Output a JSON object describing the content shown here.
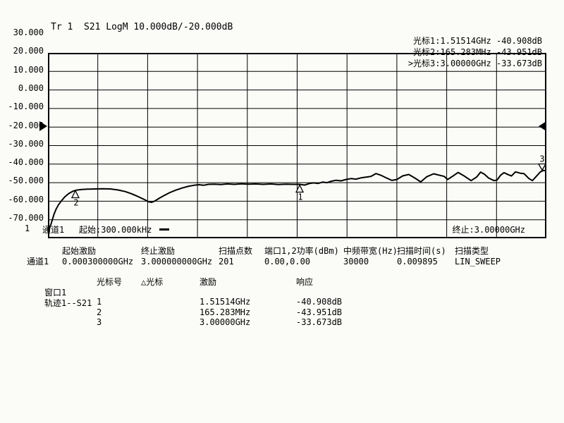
{
  "window": {
    "background": "#fbfbf8",
    "foreground": "#000000"
  },
  "trace_header": {
    "text": "Tr 1  S21 LogM 10.000dB/-20.000dB"
  },
  "plot": {
    "y_tick_labels": [
      "30.000",
      "20.000",
      "10.000",
      "0.000",
      "-10.000",
      "-20.000",
      "-30.000",
      "-40.000",
      "-50.000",
      "-60.000",
      "-70.000"
    ]
  },
  "marker_readouts": [
    {
      "active": false,
      "name": "光标1",
      "stimulus": "1.51514GHz",
      "response": "-40.908dB"
    },
    {
      "active": false,
      "name": "光标2",
      "stimulus": "165.283MHz",
      "response": "-43.951dB"
    },
    {
      "active": true,
      "name": "光标3",
      "stimulus": "3.00000GHz",
      "response": "-33.673dB"
    }
  ],
  "status_bar": {
    "trace_num": "1",
    "channel": "通道1",
    "start": "起始:300.000kHz",
    "trace_style_icon": "horizontal-line",
    "stop": "终止:3.00000GHz"
  },
  "sweep_table": {
    "row_label": "通道1",
    "columns": [
      {
        "header": "起始激励",
        "value": "0.000300000GHz"
      },
      {
        "header": "终止激励",
        "value": "3.000000000GHz"
      },
      {
        "header": "扫描点数",
        "value": "201"
      },
      {
        "header": "端口1,2功率(dBm)",
        "value": "0.00,0.00"
      },
      {
        "header": "中频带宽(Hz)",
        "value": "30000"
      },
      {
        "header": "扫描时间(s)",
        "value": "0.009895"
      },
      {
        "header": "扫描类型",
        "value": "LIN_SWEEP"
      }
    ]
  },
  "marker_table": {
    "window_label": "窗口1",
    "trace_label": "轨迹1--S21",
    "headers": [
      "光标号",
      "△光标",
      "激励",
      "响应"
    ],
    "rows": [
      {
        "num": "1",
        "delta": "",
        "stimulus": "1.51514GHz",
        "response": "-40.908dB"
      },
      {
        "num": "2",
        "delta": "",
        "stimulus": "165.283MHz",
        "response": "-43.951dB"
      },
      {
        "num": "3",
        "delta": "",
        "stimulus": "3.00000GHz",
        "response": "-33.673dB"
      }
    ]
  },
  "chart_data": {
    "type": "line",
    "title": "Tr 1 S21 LogM 10.000dB/-20.000dB",
    "x_axis": {
      "start_label": "300.000kHz",
      "stop_label": "3.00000GHz",
      "start_hz": 300000,
      "stop_hz": 3000000000,
      "scale": "linear",
      "divisions": 10
    },
    "y_axis": {
      "min": -70,
      "max": 30,
      "tick_step": 10,
      "unit": "dB",
      "reference_level": -20,
      "scale_per_div": "10.000dB"
    },
    "grid": {
      "x_divisions": 10,
      "y_divisions": 10,
      "color": "#000000"
    },
    "legend_position": "top-right-overlay",
    "markers": [
      {
        "num": "1",
        "x_frac": 0.505,
        "db": -40.908,
        "glyph": "triangle-up",
        "label_pos": "below"
      },
      {
        "num": "2",
        "x_frac": 0.0551,
        "db": -43.951,
        "glyph": "triangle-up",
        "label_pos": "below"
      },
      {
        "num": "3",
        "x_frac": 0.998,
        "db": -33.673,
        "glyph": "triangle-down",
        "label_pos": "above"
      }
    ],
    "series": [
      {
        "name": "Tr1 S21",
        "points": [
          [
            0.0,
            -64.3
          ],
          [
            0.003,
            -64.8
          ],
          [
            0.006,
            -62.5
          ],
          [
            0.009,
            -59.8
          ],
          [
            0.012,
            -57.2
          ],
          [
            0.016,
            -54.5
          ],
          [
            0.021,
            -52.0
          ],
          [
            0.027,
            -49.8
          ],
          [
            0.034,
            -47.6
          ],
          [
            0.042,
            -45.8
          ],
          [
            0.05,
            -44.6
          ],
          [
            0.058,
            -44.0
          ],
          [
            0.068,
            -43.7
          ],
          [
            0.08,
            -43.5
          ],
          [
            0.095,
            -43.4
          ],
          [
            0.11,
            -43.3
          ],
          [
            0.125,
            -43.4
          ],
          [
            0.14,
            -43.9
          ],
          [
            0.155,
            -44.8
          ],
          [
            0.168,
            -46.0
          ],
          [
            0.18,
            -47.4
          ],
          [
            0.192,
            -48.9
          ],
          [
            0.202,
            -50.3
          ],
          [
            0.208,
            -50.6
          ],
          [
            0.215,
            -49.8
          ],
          [
            0.224,
            -48.3
          ],
          [
            0.234,
            -46.8
          ],
          [
            0.245,
            -45.3
          ],
          [
            0.257,
            -44.0
          ],
          [
            0.269,
            -42.9
          ],
          [
            0.281,
            -42.0
          ],
          [
            0.293,
            -41.4
          ],
          [
            0.303,
            -41.1
          ],
          [
            0.312,
            -41.4
          ],
          [
            0.322,
            -40.9
          ],
          [
            0.334,
            -40.8
          ],
          [
            0.347,
            -41.0
          ],
          [
            0.36,
            -40.7
          ],
          [
            0.374,
            -40.9
          ],
          [
            0.388,
            -40.6
          ],
          [
            0.402,
            -40.8
          ],
          [
            0.417,
            -40.7
          ],
          [
            0.432,
            -40.9
          ],
          [
            0.447,
            -40.7
          ],
          [
            0.462,
            -41.0
          ],
          [
            0.477,
            -40.8
          ],
          [
            0.492,
            -40.9
          ],
          [
            0.505,
            -40.9
          ],
          [
            0.515,
            -41.3
          ],
          [
            0.524,
            -40.5
          ],
          [
            0.533,
            -40.1
          ],
          [
            0.542,
            -40.4
          ],
          [
            0.551,
            -39.7
          ],
          [
            0.56,
            -40.0
          ],
          [
            0.569,
            -39.2
          ],
          [
            0.578,
            -38.7
          ],
          [
            0.588,
            -39.0
          ],
          [
            0.598,
            -38.3
          ],
          [
            0.608,
            -37.8
          ],
          [
            0.618,
            -38.1
          ],
          [
            0.628,
            -37.4
          ],
          [
            0.638,
            -37.0
          ],
          [
            0.648,
            -36.6
          ],
          [
            0.658,
            -35.1
          ],
          [
            0.668,
            -36.0
          ],
          [
            0.678,
            -37.3
          ],
          [
            0.69,
            -38.8
          ],
          [
            0.7,
            -38.3
          ],
          [
            0.712,
            -36.3
          ],
          [
            0.724,
            -35.6
          ],
          [
            0.736,
            -37.5
          ],
          [
            0.748,
            -39.6
          ],
          [
            0.76,
            -36.8
          ],
          [
            0.774,
            -35.2
          ],
          [
            0.784,
            -35.9
          ],
          [
            0.795,
            -36.6
          ],
          [
            0.802,
            -38.3
          ],
          [
            0.812,
            -36.5
          ],
          [
            0.823,
            -34.5
          ],
          [
            0.834,
            -36.2
          ],
          [
            0.849,
            -38.9
          ],
          [
            0.86,
            -37.0
          ],
          [
            0.868,
            -34.3
          ],
          [
            0.876,
            -35.5
          ],
          [
            0.884,
            -37.5
          ],
          [
            0.895,
            -38.9
          ],
          [
            0.901,
            -38.6
          ],
          [
            0.908,
            -36.0
          ],
          [
            0.915,
            -34.6
          ],
          [
            0.922,
            -35.5
          ],
          [
            0.93,
            -36.4
          ],
          [
            0.938,
            -34.2
          ],
          [
            0.948,
            -34.9
          ],
          [
            0.955,
            -35.1
          ],
          [
            0.965,
            -37.8
          ],
          [
            0.972,
            -38.9
          ],
          [
            0.98,
            -36.5
          ],
          [
            0.988,
            -34.2
          ],
          [
            0.994,
            -33.4
          ],
          [
            1.0,
            -33.67
          ]
        ]
      }
    ]
  }
}
